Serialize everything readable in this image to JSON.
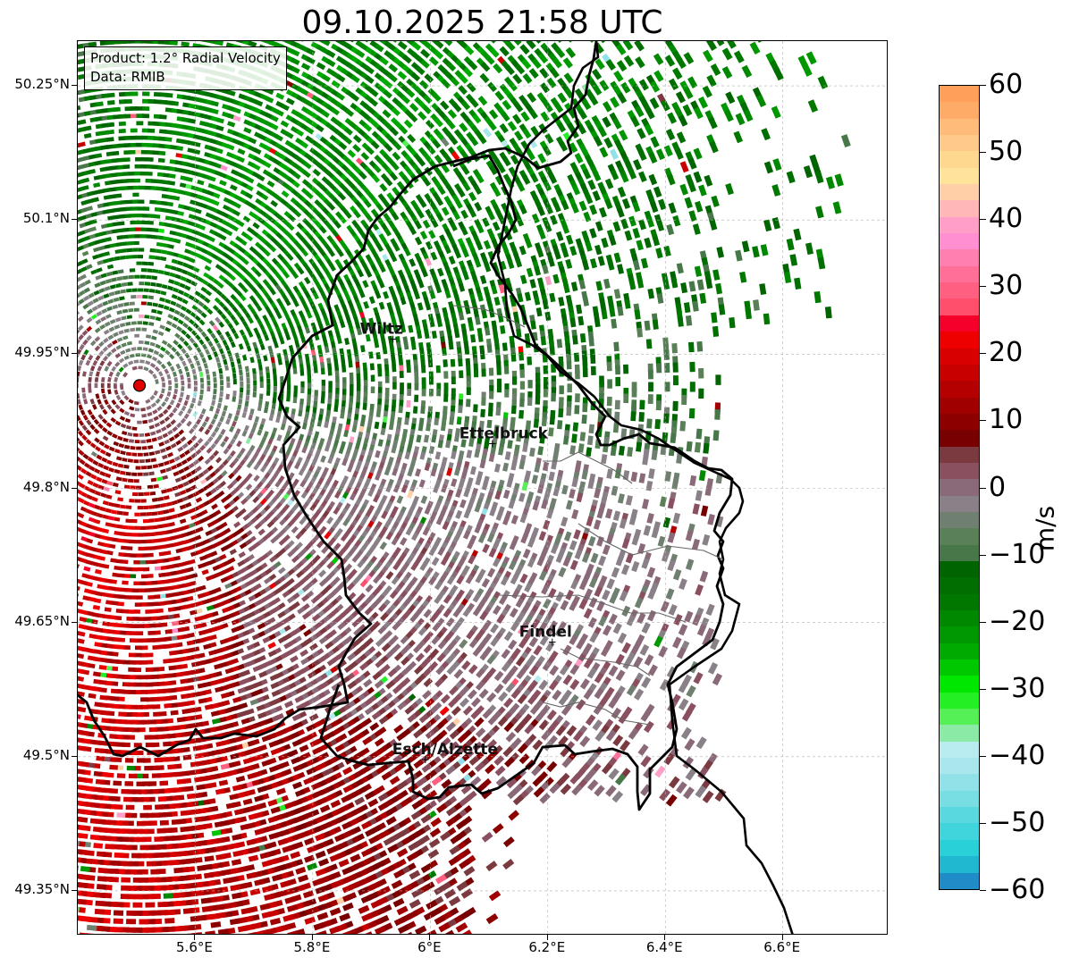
{
  "title": "09.10.2025 21:58 UTC",
  "info_box": {
    "product": "Product: 1.2° Radial Velocity",
    "data": "Data: RMIB"
  },
  "axes": {
    "lon_range": [
      5.4,
      6.78
    ],
    "lat_range": [
      49.3,
      50.3
    ],
    "x_ticks": [
      "5.6°E",
      "5.8°E",
      "6°E",
      "6.2°E",
      "6.4°E",
      "6.6°E"
    ],
    "x_tick_values": [
      5.6,
      5.8,
      6.0,
      6.2,
      6.4,
      6.6
    ],
    "y_ticks": [
      "50.25°N",
      "50.1°N",
      "49.95°N",
      "49.8°N",
      "49.65°N",
      "49.5°N",
      "49.35°N"
    ],
    "y_tick_values": [
      50.25,
      50.1,
      49.95,
      49.8,
      49.65,
      49.5,
      49.35
    ],
    "grid": true
  },
  "radar_site": {
    "lon": 5.505,
    "lat": 49.915,
    "color": "#e00000"
  },
  "cities": [
    {
      "name": "Wiltz",
      "lon": 5.935,
      "lat": 49.967
    },
    {
      "name": "Ettelbruck",
      "lon": 6.104,
      "lat": 49.85
    },
    {
      "name": "Findel",
      "lon": 6.206,
      "lat": 49.628
    },
    {
      "name": "Esch/Alzette",
      "lon": 5.99,
      "lat": 49.497
    }
  ],
  "colorbar": {
    "unit": "m/s",
    "min": -60,
    "max": 60,
    "ticks": [
      "60",
      "50",
      "40",
      "30",
      "20",
      "10",
      "0",
      "−10",
      "−20",
      "−30",
      "−40",
      "−50",
      "−60"
    ],
    "tick_values": [
      60,
      50,
      40,
      30,
      20,
      10,
      0,
      -10,
      -20,
      -30,
      -40,
      -50,
      -60
    ],
    "bands_top_to_bottom": [
      "#ff9f5a",
      "#ffab68",
      "#ffbb7a",
      "#ffc98a",
      "#ffd88f",
      "#ffe39a",
      "#ffcfa8",
      "#ffb7b8",
      "#ff9fc8",
      "#ff8fd0",
      "#ff7fb0",
      "#ff6f98",
      "#ff5f80",
      "#ff4f6c",
      "#f5002a",
      "#ee0000",
      "#d80000",
      "#c80000",
      "#b40000",
      "#a00000",
      "#8c0000",
      "#780000",
      "#7a3a40",
      "#8a5060",
      "#8a6a78",
      "#8a8088",
      "#708070",
      "#5a8058",
      "#48784a",
      "#006400",
      "#006e00",
      "#007800",
      "#008800",
      "#009800",
      "#00aa00",
      "#00c800",
      "#00e800",
      "#22f022",
      "#55f055",
      "#8aeaa6",
      "#b8ecf0",
      "#a8e8ec",
      "#90e2e8",
      "#78dee4",
      "#5ad8e0",
      "#40d4dc",
      "#2ad0d8",
      "#20b8d0",
      "#1f8cc8"
    ]
  }
}
